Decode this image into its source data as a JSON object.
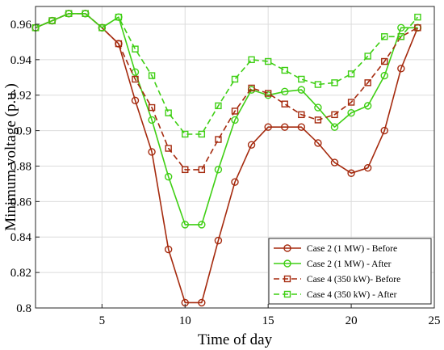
{
  "chart_data": {
    "type": "line",
    "xlabel": "Time of day",
    "ylabel": "Minimum voltage (p.u.)",
    "xlim": [
      1,
      25
    ],
    "ylim": [
      0.8,
      0.97
    ],
    "x_ticks": [
      5,
      10,
      15,
      20,
      25
    ],
    "y_ticks": [
      0.8,
      0.82,
      0.84,
      0.86,
      0.88,
      0.9,
      0.92,
      0.94,
      0.96
    ],
    "x_tick_labels": [
      "5",
      "10",
      "15",
      "20",
      "25"
    ],
    "y_tick_labels": [
      "0.8",
      "0.82",
      "0.84",
      "0.86",
      "0.88",
      "0.9",
      "0.92",
      "0.94",
      "0.96"
    ],
    "grid": true,
    "legend_position": "bottom-right",
    "x": [
      1,
      2,
      3,
      4,
      5,
      6,
      7,
      8,
      9,
      10,
      11,
      12,
      13,
      14,
      15,
      16,
      17,
      18,
      19,
      20,
      21,
      22,
      23,
      24
    ],
    "series": [
      {
        "name": "Case 2 (1 MW) - Before",
        "color": "#a52a0e",
        "line": "solid",
        "marker": "circle",
        "values": [
          0.958,
          0.962,
          0.966,
          0.966,
          0.958,
          0.949,
          0.917,
          0.888,
          0.833,
          0.803,
          0.803,
          0.838,
          0.871,
          0.892,
          0.902,
          0.902,
          0.902,
          0.893,
          0.882,
          0.876,
          0.879,
          0.9,
          0.935,
          0.958
        ]
      },
      {
        "name": "Case 2 (1 MW) - After",
        "color": "#3fcf14",
        "line": "solid",
        "marker": "circle",
        "values": [
          0.958,
          0.962,
          0.966,
          0.966,
          0.958,
          0.964,
          0.933,
          0.906,
          0.874,
          0.847,
          0.847,
          0.878,
          0.906,
          0.923,
          0.92,
          0.922,
          0.923,
          0.913,
          0.902,
          0.91,
          0.914,
          0.931,
          0.958,
          0.958
        ]
      },
      {
        "name": "Case 4 (350 kW)- Before",
        "color": "#a52a0e",
        "line": "dashed",
        "marker": "square",
        "values": [
          0.958,
          0.962,
          0.966,
          0.966,
          0.958,
          0.949,
          0.929,
          0.913,
          0.89,
          0.878,
          0.878,
          0.895,
          0.911,
          0.924,
          0.921,
          0.915,
          0.909,
          0.906,
          0.909,
          0.916,
          0.927,
          0.939,
          0.953,
          0.958
        ]
      },
      {
        "name": "Case 4 (350 kW) - After",
        "color": "#3fcf14",
        "line": "dashed",
        "marker": "square",
        "values": [
          0.958,
          0.962,
          0.966,
          0.966,
          0.958,
          0.964,
          0.946,
          0.931,
          0.91,
          0.898,
          0.898,
          0.914,
          0.929,
          0.94,
          0.939,
          0.934,
          0.929,
          0.926,
          0.927,
          0.932,
          0.942,
          0.953,
          0.953,
          0.964
        ]
      }
    ]
  }
}
